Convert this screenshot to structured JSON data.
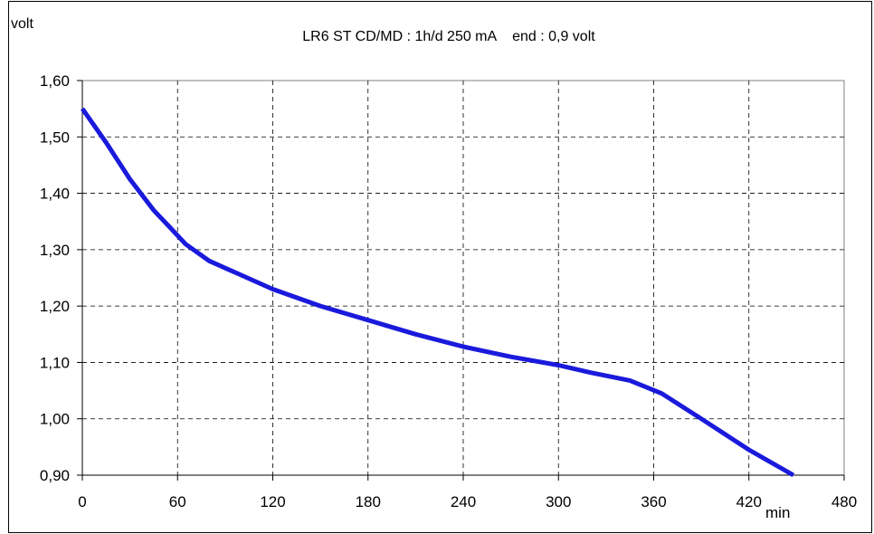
{
  "chart_data": {
    "type": "line",
    "title": "LR6 ST CD/MD : 1h/d 250 mA    end : 0,9 volt",
    "ylabel": "volt",
    "xlabel": "min",
    "xlim": [
      0,
      480
    ],
    "ylim": [
      0.9,
      1.6
    ],
    "x_ticks": [
      0,
      60,
      120,
      180,
      240,
      300,
      360,
      420,
      480
    ],
    "x_tick_labels": [
      "0",
      "60",
      "120",
      "180",
      "240",
      "300",
      "360",
      "420",
      "480"
    ],
    "y_ticks": [
      0.9,
      1.0,
      1.1,
      1.2,
      1.3,
      1.4,
      1.5,
      1.6
    ],
    "y_tick_labels": [
      "0,90",
      "1,00",
      "1,10",
      "1,20",
      "1,30",
      "1,40",
      "1,50",
      "1,60"
    ],
    "grid": true,
    "series": [
      {
        "color": "#1a1adc",
        "x": [
          0,
          15,
          30,
          45,
          55,
          65,
          80,
          100,
          120,
          150,
          180,
          210,
          240,
          270,
          300,
          320,
          345,
          365,
          390,
          420,
          448
        ],
        "y": [
          1.55,
          1.49,
          1.425,
          1.37,
          1.34,
          1.31,
          1.28,
          1.255,
          1.23,
          1.2,
          1.175,
          1.15,
          1.128,
          1.11,
          1.095,
          1.082,
          1.068,
          1.045,
          1.0,
          0.945,
          0.9
        ]
      }
    ]
  }
}
